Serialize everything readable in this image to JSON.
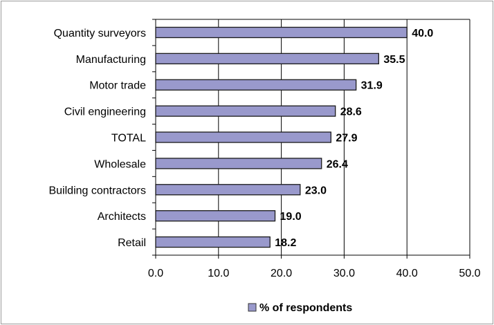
{
  "chart_data": {
    "type": "bar",
    "orientation": "horizontal",
    "categories": [
      "Quantity surveyors",
      "Manufacturing",
      "Motor trade",
      "Civil engineering",
      "TOTAL",
      "Wholesale",
      "Building contractors",
      "Architects",
      "Retail"
    ],
    "series": [
      {
        "name": "% of respondents",
        "values": [
          40.0,
          35.5,
          31.9,
          28.6,
          27.9,
          26.4,
          23.0,
          19.0,
          18.2
        ],
        "color": "#9999cc"
      }
    ],
    "value_labels": [
      "40.0",
      "35.5",
      "31.9",
      "28.6",
      "27.9",
      "26.4",
      "23.0",
      "19.0",
      "18.2"
    ],
    "x_ticks": [
      "0.0",
      "10.0",
      "20.0",
      "30.0",
      "40.0",
      "50.0"
    ],
    "xlim": [
      0,
      50
    ],
    "grid": "vertical",
    "legend": "bottom"
  }
}
